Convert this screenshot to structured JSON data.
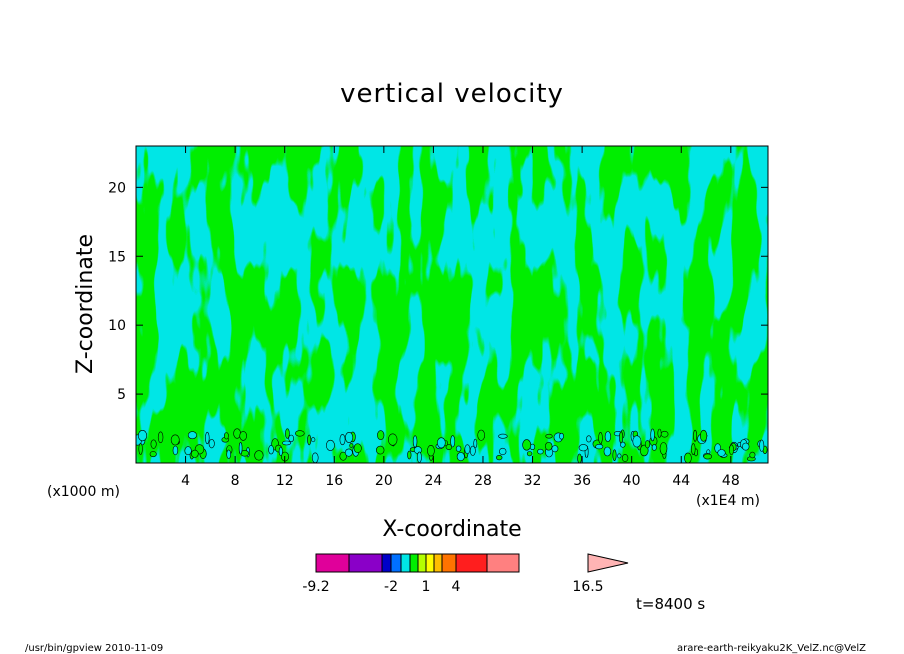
{
  "chart_data": {
    "type": "heatmap",
    "title": "vertical velocity",
    "xlabel": "X-coordinate",
    "ylabel": "Z-coordinate",
    "x_unit": "(x1E4 m)",
    "y_unit": "(x1000 m)",
    "xlim": [
      0,
      51
    ],
    "ylim": [
      0,
      23
    ],
    "x_ticks": [
      4,
      8,
      12,
      16,
      20,
      24,
      28,
      32,
      36,
      40,
      44,
      48
    ],
    "y_ticks": [
      5,
      10,
      15,
      20
    ],
    "colorbar": {
      "tick_labels": [
        "-9.2",
        "-2",
        "1",
        "4",
        "16.5"
      ],
      "colors": [
        "#e0009a",
        "#8a00c8",
        "#0000c8",
        "#0070ff",
        "#00e6e6",
        "#00ee00",
        "#b4ff00",
        "#ffff00",
        "#ffbe00",
        "#ff7300",
        "#ff1e1e",
        "#ff8080",
        "#ffb4b4"
      ]
    },
    "dominant_colors": {
      "negative": "#00e6e6",
      "positive": "#00ee00"
    },
    "time_label": "t=8400 s"
  },
  "footer": {
    "left": "/usr/bin/gpview   2010-11-09",
    "right": "arare-earth-reikyaku2K_VelZ.nc@VelZ"
  }
}
